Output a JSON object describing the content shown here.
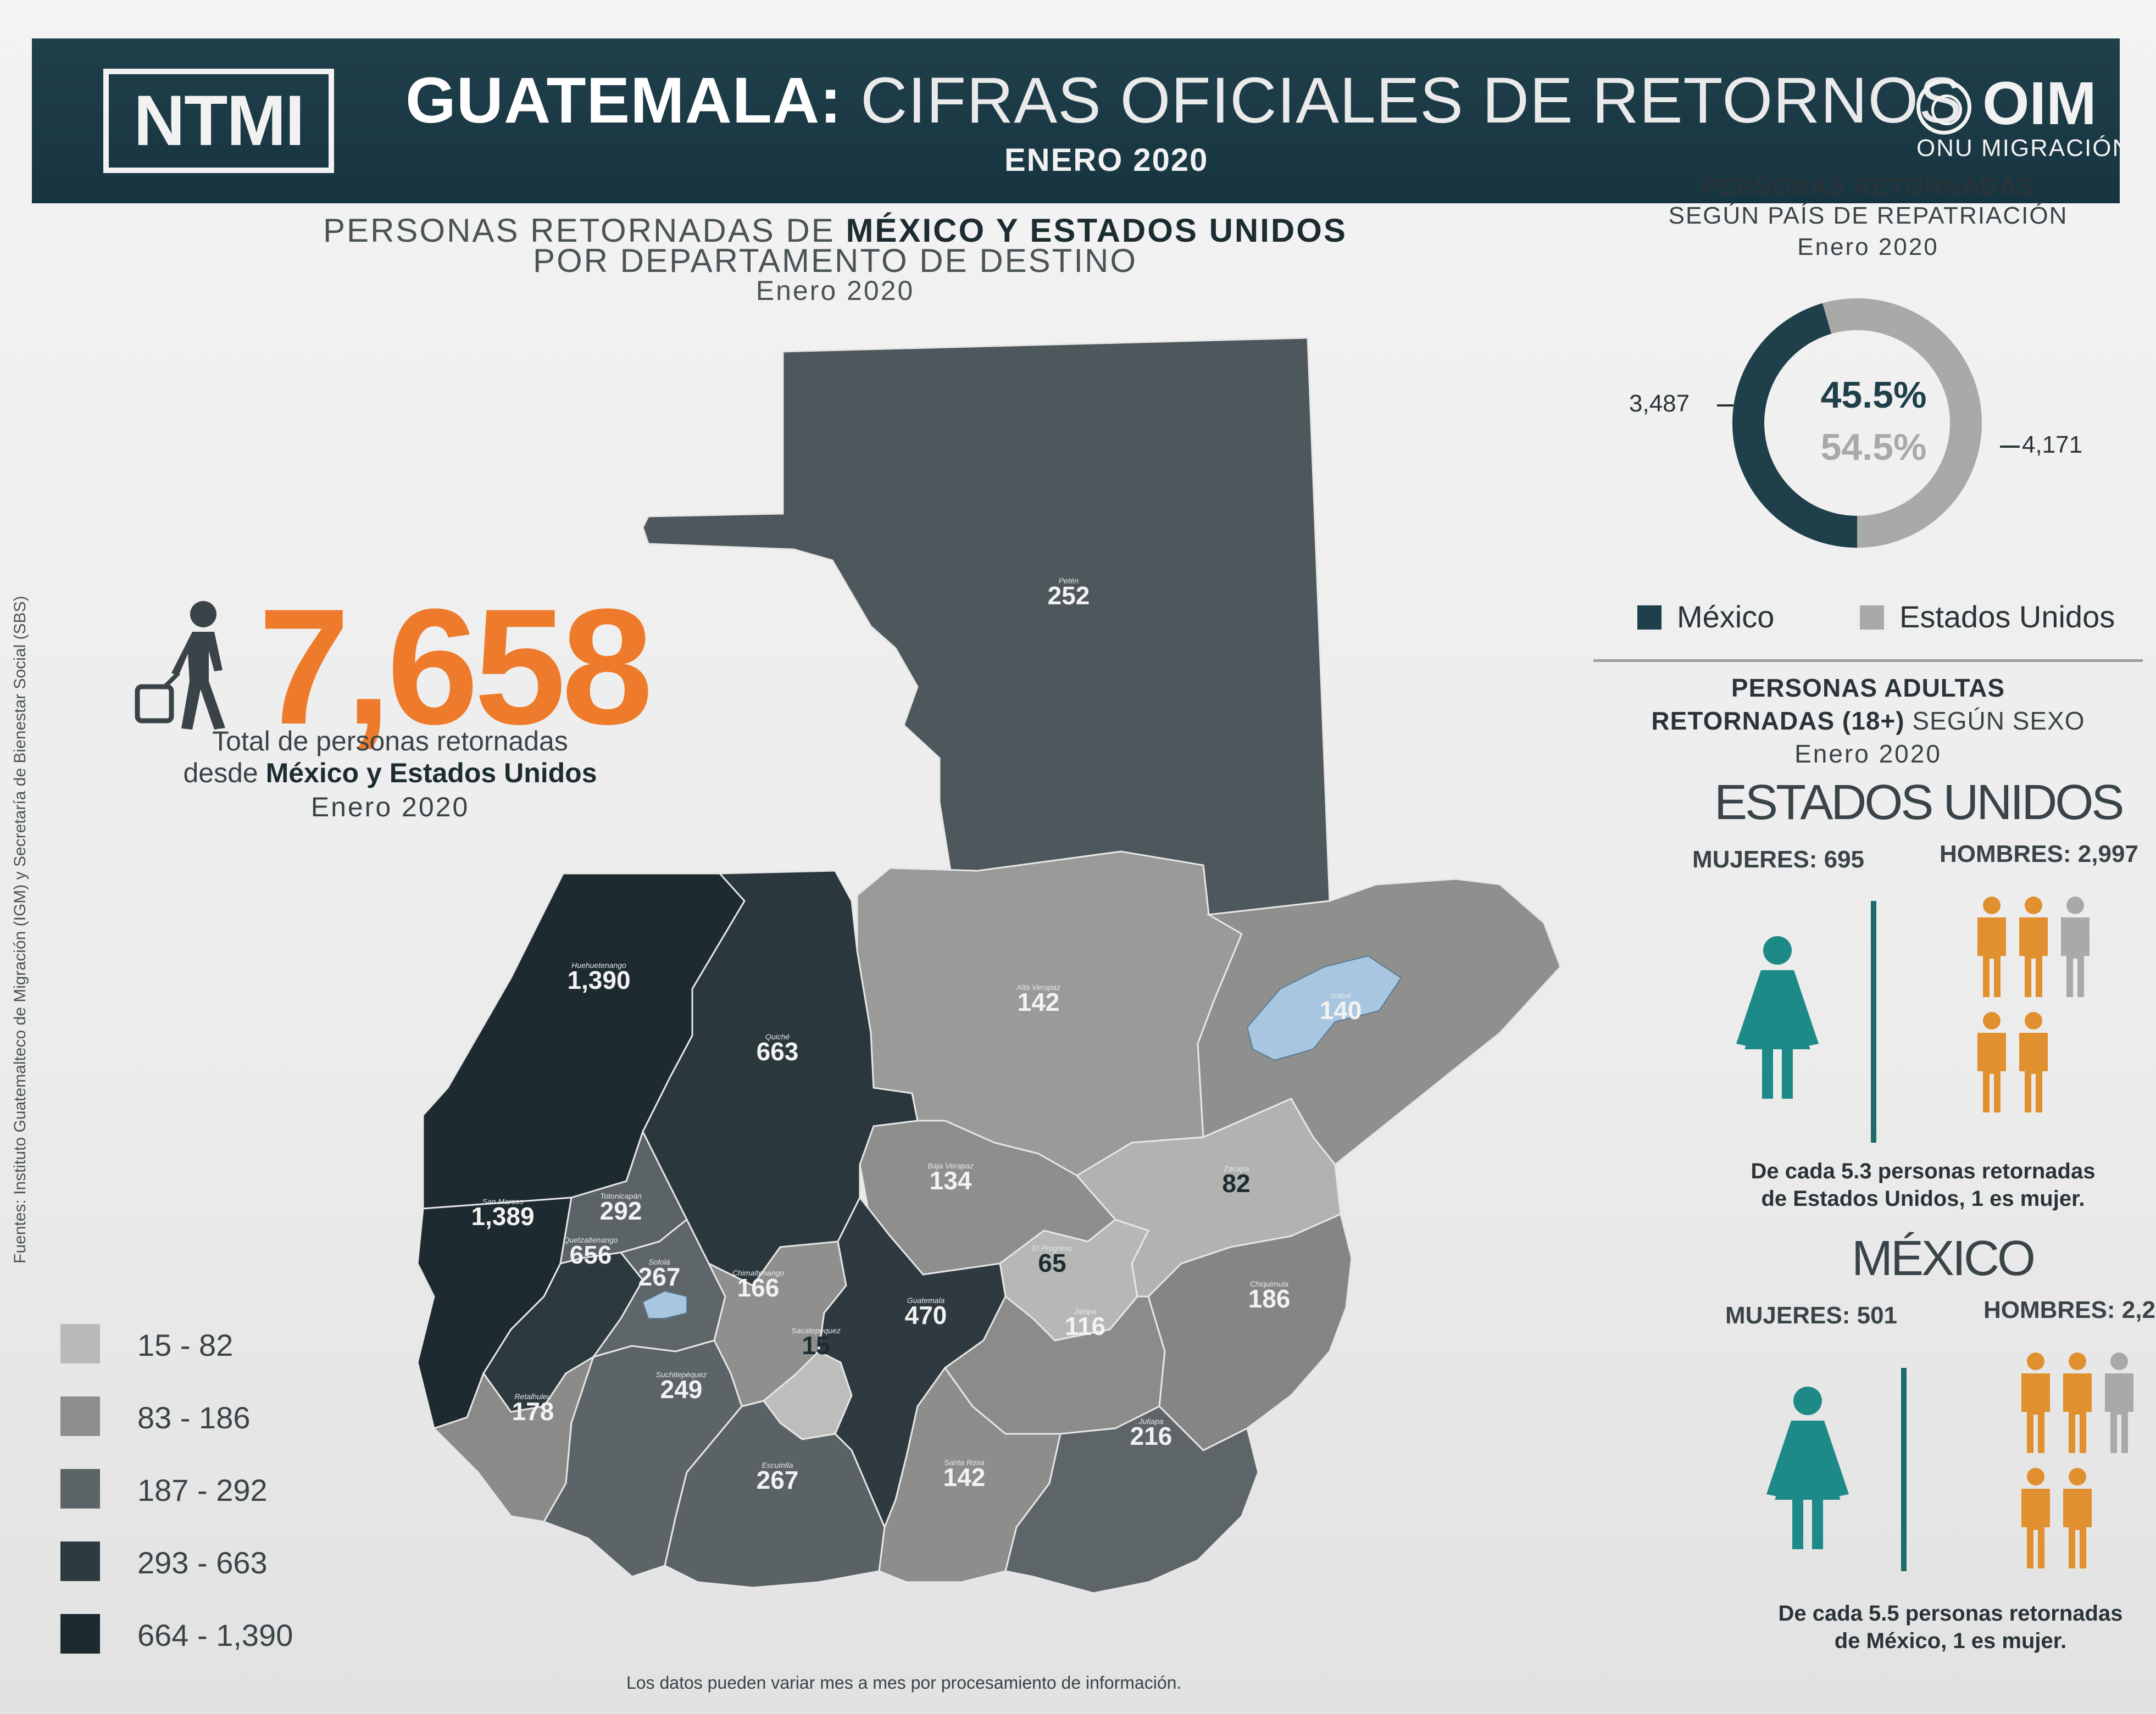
{
  "header": {
    "badge": "NTMI",
    "title_bold": "GUATEMALA:",
    "title_rest": " CIFRAS OFICIALES DE RETORNOS",
    "subtitle": "ENERO 2020",
    "org_name": "OIM",
    "org_sub": "ONU MIGRACIÓN"
  },
  "map_title": {
    "line1_pre": "PERSONAS RETORNADAS DE ",
    "line1_bold": "MÉXICO Y ESTADOS UNIDOS",
    "line2": "POR DEPARTAMENTO DE DESTINO",
    "line3": "Enero 2020"
  },
  "total": {
    "value": "7,658",
    "line1": "Total de personas retornadas",
    "line2_pre": "desde ",
    "line2_bold": "México y Estados Unidos",
    "line3": "Enero 2020"
  },
  "source": "Fuentes: Instituto Guatemalteco de Migración (IGM) y Secretaría de Bienestar Social (SBS)",
  "departments": [
    {
      "id": "peten",
      "name": "Petén",
      "value": "252",
      "fill": "#4e575b"
    },
    {
      "id": "huehuetenango",
      "name": "Huehuetenango",
      "value": "1,390",
      "fill": "#1d2a30"
    },
    {
      "id": "quiche",
      "name": "Quiché",
      "value": "663",
      "fill": "#2a373c"
    },
    {
      "id": "alta-verapaz",
      "name": "Alta Verapaz",
      "value": "142",
      "fill": "#9a9b99"
    },
    {
      "id": "izabal",
      "name": "Izabal",
      "value": "140",
      "fill": "#8f908e"
    },
    {
      "id": "baja-verapaz",
      "name": "Baja Verapaz",
      "value": "134",
      "fill": "#8e8f8d"
    },
    {
      "id": "el-progreso",
      "name": "El Progreso",
      "value": "65",
      "fill": "#b7b8b6"
    },
    {
      "id": "zacapa",
      "name": "Zacapa",
      "value": "82",
      "fill": "#b2b3b1"
    },
    {
      "id": "san-marcos",
      "name": "San Marcos",
      "value": "1,389",
      "fill": "#1d2a30"
    },
    {
      "id": "totonicapan",
      "name": "Totonicapán",
      "value": "292",
      "fill": "#5b6366"
    },
    {
      "id": "quetzaltenango",
      "name": "Quetzaltenango",
      "value": "656",
      "fill": "#2c393e"
    },
    {
      "id": "solola",
      "name": "Sololá",
      "value": "267",
      "fill": "#5f6669"
    },
    {
      "id": "chimaltenango",
      "name": "Chimaltenango",
      "value": "166",
      "fill": "#8f908e"
    },
    {
      "id": "sacatepequez",
      "name": "Sacatepéquez",
      "value": "15",
      "fill": "#bdbebc"
    },
    {
      "id": "guatemala",
      "name": "Guatemala",
      "value": "470",
      "fill": "#2e3a3f"
    },
    {
      "id": "jalapa",
      "name": "Jalapa",
      "value": "116",
      "fill": "#8b8c8a"
    },
    {
      "id": "chiquimula",
      "name": "Chiquimula",
      "value": "186",
      "fill": "#858684"
    },
    {
      "id": "retalhuleu",
      "name": "Retalhuleu",
      "value": "178",
      "fill": "#8a8b89"
    },
    {
      "id": "suchitepequez",
      "name": "Suchitepéquez",
      "value": "249",
      "fill": "#5c6467"
    },
    {
      "id": "escuintla",
      "name": "Escuintla",
      "value": "267",
      "fill": "#5a6265"
    },
    {
      "id": "santa-rosa",
      "name": "Santa Rosa",
      "value": "142",
      "fill": "#8d8e8c"
    },
    {
      "id": "jutiapa",
      "name": "Jutiapa",
      "value": "216",
      "fill": "#5d6568"
    }
  ],
  "legend": [
    {
      "label": "15 - 82",
      "color": "#b9bab8"
    },
    {
      "label": "83 - 186",
      "color": "#8e8f8d"
    },
    {
      "label": "187 - 292",
      "color": "#5c6467"
    },
    {
      "label": "293 - 663",
      "color": "#2d3a3f"
    },
    {
      "label": "664 - 1,390",
      "color": "#1d2a30"
    }
  ],
  "footnote": "Los datos pueden variar mes a mes por procesamiento de información.",
  "repatriation": {
    "title_bold": "PERSONAS RETORNADAS",
    "title_line2": "SEGÚN PAÍS DE REPATRIACIÓN",
    "title_line3": "Enero 2020",
    "mexico_count": "3,487",
    "usa_count": "4,171",
    "mexico_pct": "45.5%",
    "usa_pct": "54.5%",
    "mexico_share": 0.455,
    "mexico_color": "#1f3f4b",
    "usa_color": "#a9aaa8",
    "legend_mexico": "México",
    "legend_usa": "Estados Unidos"
  },
  "adults": {
    "title_line1": "PERSONAS ADULTAS",
    "title_line2_bold": "RETORNADAS (18+)",
    "title_line2_rest": " SEGÚN SEXO",
    "title_line3": "Enero 2020",
    "usa": {
      "country": "ESTADOS UNIDOS",
      "women": "MUJERES: 695",
      "men": "HOMBRES: 2,997",
      "ratio_line1": "De cada 5.3 personas retornadas",
      "ratio_line2": "de Estados Unidos, 1 es mujer."
    },
    "mexico": {
      "country": "MÉXICO",
      "women": "MUJERES: 501",
      "men": "HOMBRES: 2,2",
      "ratio_line1": "De cada 5.5 personas retornadas",
      "ratio_line2": "de México, 1 es mujer."
    },
    "woman_color": "#1d8a88",
    "man_color": "#e0902e",
    "partial_man_color": "#a9aaa8"
  }
}
